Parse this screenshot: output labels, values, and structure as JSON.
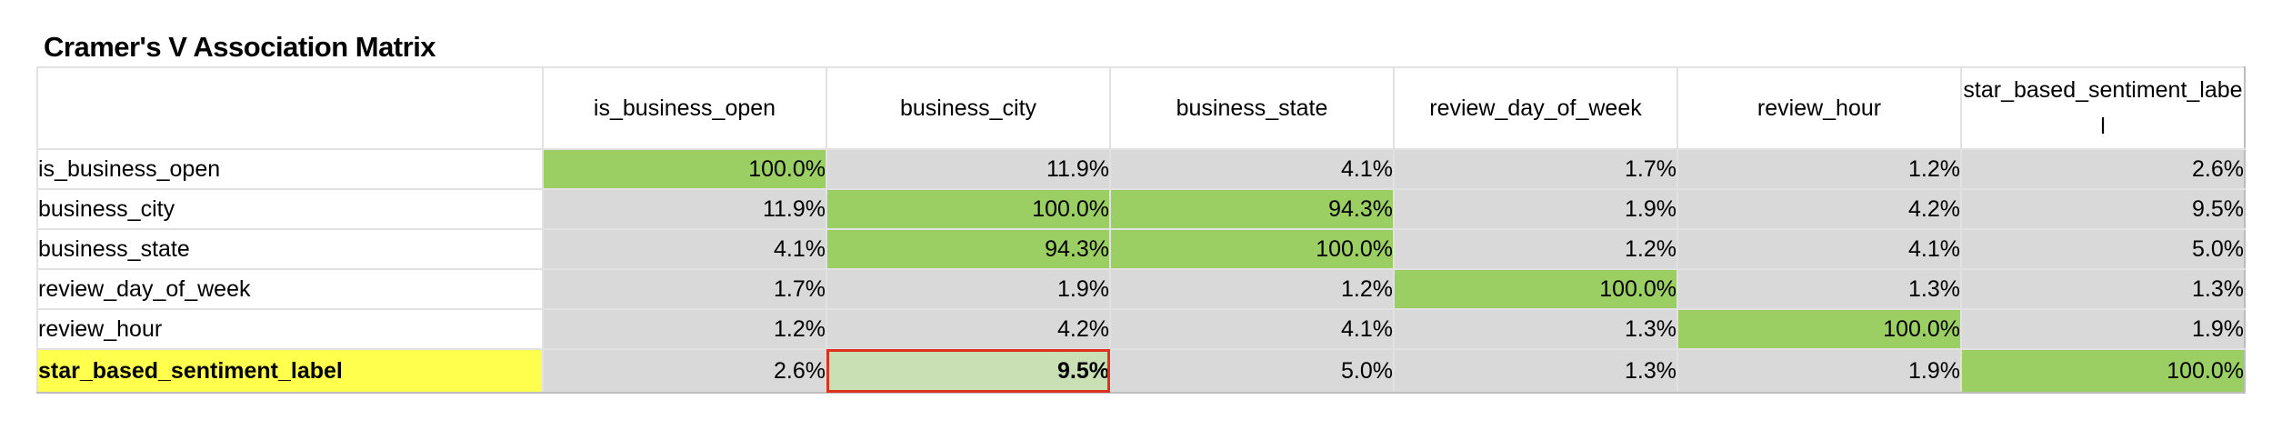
{
  "title": "Cramer's V Association Matrix",
  "columns": [
    "is_business_open",
    "business_city",
    "business_state",
    "review_day_of_week",
    "review_hour",
    "star_based_sentiment_label"
  ],
  "rows": [
    {
      "label": "is_business_open",
      "values": [
        "100.0%",
        "11.9%",
        "4.1%",
        "1.7%",
        "1.2%",
        "2.6%"
      ]
    },
    {
      "label": "business_city",
      "values": [
        "11.9%",
        "100.0%",
        "94.3%",
        "1.9%",
        "4.2%",
        "9.5%"
      ]
    },
    {
      "label": "business_state",
      "values": [
        "4.1%",
        "94.3%",
        "100.0%",
        "1.2%",
        "4.1%",
        "5.0%"
      ]
    },
    {
      "label": "review_day_of_week",
      "values": [
        "1.7%",
        "1.9%",
        "1.2%",
        "100.0%",
        "1.3%",
        "1.3%"
      ]
    },
    {
      "label": "review_hour",
      "values": [
        "1.2%",
        "4.2%",
        "4.1%",
        "1.3%",
        "100.0%",
        "1.9%"
      ]
    },
    {
      "label": "star_based_sentiment_label",
      "values": [
        "2.6%",
        "9.5%",
        "5.0%",
        "1.3%",
        "1.9%",
        "100.0%"
      ]
    }
  ],
  "colors": {
    "high": "#9ccf63",
    "low": "#d9d9d9",
    "highlight_row": "#ffff4d",
    "selection_border": "#e03020"
  }
}
